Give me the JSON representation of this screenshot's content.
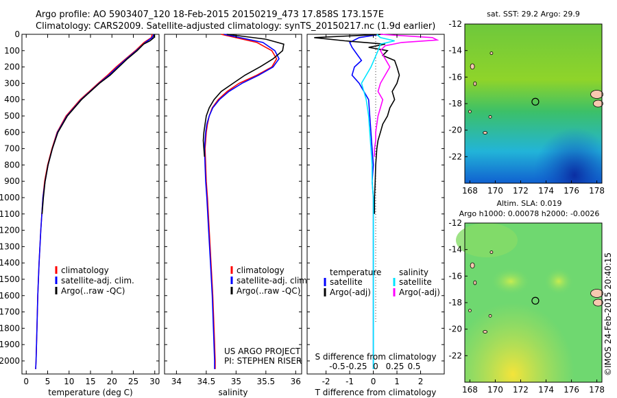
{
  "title": {
    "line1": "Argo profile: AO 5903407_120 18-Feb-2015 20150219_473 17.858S 173.157E",
    "line2": "Climatology: CARS2009. Satellite-adjusted climatology: synTS_20150217.nc (1.9d earlier)"
  },
  "colors": {
    "clim": "#ff0000",
    "sat": "#0000ff",
    "argo": "#000000",
    "sal_sat": "#00e5ff",
    "sal_argo": "#ff00ff"
  },
  "chart_data": [
    {
      "type": "line",
      "name": "temperature-panel",
      "xlabel": "temperature (deg C)",
      "xlim": [
        -1,
        31
      ],
      "ylim": [
        2080,
        0
      ],
      "xticks": [
        "0",
        "5",
        "10",
        "15",
        "20",
        "25",
        "30"
      ],
      "xtick_values": [
        0,
        5,
        10,
        15,
        20,
        25,
        30
      ],
      "yticks": [
        "0",
        "100",
        "200",
        "300",
        "400",
        "500",
        "600",
        "700",
        "800",
        "900",
        "1000",
        "1100",
        "1200",
        "1300",
        "1400",
        "1500",
        "1600",
        "1700",
        "1800",
        "1900",
        "2000"
      ],
      "ytick_values": [
        0,
        100,
        200,
        300,
        400,
        500,
        600,
        700,
        800,
        900,
        1000,
        1100,
        1200,
        1300,
        1400,
        1500,
        1600,
        1700,
        1800,
        1900,
        2000
      ],
      "legend": [
        "climatology",
        "satellite-adj. clim.",
        "Argo(..raw -QC)"
      ],
      "series": [
        {
          "name": "climatology",
          "color": "#ff0000",
          "depth": [
            0,
            20,
            50,
            100,
            150,
            200,
            250,
            300,
            400,
            500,
            600,
            700,
            800,
            900,
            1000,
            1200,
            1400,
            1600,
            1800,
            2000,
            2050
          ],
          "values": [
            29.4,
            29.2,
            27.5,
            25.5,
            23.2,
            21.0,
            19.0,
            16.8,
            12.6,
            9.3,
            7.2,
            6.0,
            5.0,
            4.3,
            3.9,
            3.4,
            3.0,
            2.7,
            2.5,
            2.3,
            2.2
          ]
        },
        {
          "name": "satellite-adj. clim.",
          "color": "#0000ff",
          "depth": [
            0,
            20,
            50,
            100,
            150,
            200,
            250,
            300,
            400,
            500,
            600,
            700,
            800,
            900,
            1000,
            1200,
            1400,
            1600,
            1800,
            2000,
            2050
          ],
          "values": [
            29.8,
            29.4,
            27.8,
            25.7,
            23.4,
            21.3,
            19.3,
            17.0,
            12.8,
            9.5,
            7.3,
            6.1,
            5.1,
            4.4,
            3.9,
            3.4,
            3.0,
            2.7,
            2.5,
            2.3,
            2.2
          ]
        },
        {
          "name": "Argo(..raw -QC)",
          "color": "#000000",
          "depth": [
            0,
            20,
            40,
            60,
            100,
            150,
            200,
            250,
            300,
            400,
            500,
            600,
            700,
            800,
            900,
            1000,
            1100
          ],
          "values": [
            29.9,
            29.8,
            28.9,
            27.4,
            25.9,
            23.6,
            21.6,
            19.6,
            17.1,
            12.9,
            9.6,
            7.4,
            6.1,
            5.1,
            4.4,
            4.0,
            3.7
          ]
        }
      ]
    },
    {
      "type": "line",
      "name": "salinity-panel",
      "xlabel": "salinity",
      "xlim": [
        33.8,
        36.1
      ],
      "ylim": [
        2080,
        0
      ],
      "xticks": [
        "34",
        "34.5",
        "35",
        "35.5",
        "36"
      ],
      "xtick_values": [
        34,
        34.5,
        35,
        35.5,
        36
      ],
      "legend": [
        "climatology",
        "satellite-adj. clim.",
        "Argo(..raw -QC)"
      ],
      "series": [
        {
          "name": "climatology",
          "color": "#ff0000",
          "depth": [
            0,
            50,
            100,
            150,
            200,
            250,
            300,
            350,
            400,
            450,
            500,
            550,
            600,
            650,
            700,
            800,
            900,
            1000,
            1200,
            1400,
            1600,
            1800,
            2000,
            2050
          ],
          "values": [
            34.75,
            35.35,
            35.6,
            35.68,
            35.6,
            35.35,
            35.05,
            34.85,
            34.7,
            34.6,
            34.55,
            34.52,
            34.5,
            34.49,
            34.48,
            34.49,
            34.5,
            34.52,
            34.55,
            34.58,
            34.61,
            34.63,
            34.65,
            34.65
          ]
        },
        {
          "name": "satellite-adj. clim.",
          "color": "#0000ff",
          "depth": [
            0,
            50,
            100,
            150,
            200,
            250,
            300,
            350,
            400,
            450,
            500,
            550,
            600,
            650,
            700,
            800,
            900,
            1000,
            1200,
            1400,
            1600,
            1800,
            2000,
            2050
          ],
          "values": [
            34.8,
            35.45,
            35.65,
            35.72,
            35.62,
            35.38,
            35.1,
            34.88,
            34.72,
            34.61,
            34.55,
            34.51,
            34.49,
            34.48,
            34.47,
            34.48,
            34.49,
            34.51,
            34.54,
            34.57,
            34.6,
            34.62,
            34.64,
            34.64
          ]
        },
        {
          "name": "Argo(..raw -QC)",
          "color": "#000000",
          "depth": [
            0,
            30,
            60,
            100,
            150,
            200,
            250,
            300,
            350,
            400,
            450,
            500,
            550,
            600,
            650,
            700,
            750
          ],
          "values": [
            34.85,
            35.5,
            35.8,
            35.78,
            35.62,
            35.4,
            35.15,
            34.95,
            34.75,
            34.63,
            34.55,
            34.5,
            34.48,
            34.46,
            34.45,
            34.46,
            34.47
          ]
        }
      ]
    },
    {
      "type": "line",
      "name": "difference-panel",
      "xlabel": "T difference from climatology",
      "xlabel_top": "S difference from climatology",
      "xlim": [
        -2.8,
        3.0
      ],
      "ylim": [
        2080,
        0
      ],
      "xticks": [
        "-2",
        "-1",
        "0",
        "1",
        "2"
      ],
      "xtick_values": [
        -2,
        -1,
        0,
        1,
        2
      ],
      "xticks_top": [
        "-0.5",
        "-0.25",
        "0",
        "0.25",
        "0.5"
      ],
      "xtick_top_values": [
        -0.5,
        -0.25,
        0,
        0.25,
        0.5
      ],
      "legend_headers": [
        "temperature",
        "salinity"
      ],
      "legend": [
        "satellite",
        "Argo(-adj)",
        "satellite",
        "Argo(-adj)"
      ],
      "series": [
        {
          "name": "satellite",
          "group": "temperature",
          "color": "#0000ff",
          "depth": [
            0,
            20,
            50,
            80,
            120,
            160,
            200,
            250,
            300,
            350,
            400,
            500,
            600,
            700,
            800,
            900,
            1000,
            1200,
            1400,
            1600,
            1800,
            2000,
            2050
          ],
          "values": [
            0.3,
            -0.6,
            -1.0,
            -0.9,
            -0.7,
            -0.5,
            -0.8,
            -0.9,
            -0.6,
            -0.4,
            -0.2,
            -0.15,
            -0.1,
            -0.05,
            0.0,
            -0.05,
            0.0,
            0.0,
            0.0,
            0.0,
            0.0,
            0.0,
            0.0
          ]
        },
        {
          "name": "Argo(-adj)",
          "group": "temperature",
          "color": "#000000",
          "depth": [
            0,
            20,
            40,
            60,
            80,
            100,
            130,
            160,
            200,
            250,
            300,
            350,
            400,
            450,
            500,
            550,
            600,
            650,
            700,
            800,
            900,
            1000,
            1100
          ],
          "values": [
            0.4,
            -2.5,
            -1.2,
            0.5,
            -0.2,
            0.6,
            0.4,
            0.9,
            1.0,
            1.1,
            1.0,
            0.8,
            0.9,
            0.7,
            0.6,
            0.4,
            0.3,
            0.2,
            0.15,
            0.1,
            0.08,
            0.05,
            0.05
          ]
        },
        {
          "name": "satellite",
          "group": "salinity",
          "color": "#00e5ff",
          "depth": [
            0,
            20,
            40,
            60,
            100,
            150,
            200,
            250,
            300,
            350,
            400,
            500,
            600,
            700,
            800,
            900,
            1000,
            1200,
            1400,
            1600,
            1800,
            2000,
            2050
          ],
          "values": [
            0.15,
            0.3,
            0.9,
            0.3,
            0.2,
            0.05,
            -0.1,
            -0.3,
            -0.5,
            -0.4,
            -0.3,
            -0.2,
            -0.15,
            -0.1,
            -0.05,
            -0.05,
            0.0,
            0.0,
            0.0,
            0.0,
            0.0,
            0.0,
            0.0
          ]
        },
        {
          "name": "Argo(-adj)",
          "group": "salinity",
          "color": "#ff00ff",
          "depth": [
            0,
            20,
            35,
            50,
            70,
            100,
            150,
            200,
            250,
            300,
            350,
            400,
            450,
            500,
            550,
            600,
            650,
            700,
            750
          ],
          "values": [
            0.3,
            2.5,
            2.7,
            1.2,
            0.5,
            0.3,
            0.5,
            0.7,
            0.5,
            0.3,
            0.2,
            0.4,
            0.3,
            0.2,
            0.15,
            0.1,
            0.1,
            0.05,
            0.05
          ]
        }
      ]
    },
    {
      "type": "heatmap",
      "name": "sst-map",
      "title": "sat. SST: 29.2  Argo: 29.9",
      "xlim": [
        167.6,
        178.4
      ],
      "ylim": [
        -24,
        -12
      ],
      "xticks": [
        "168",
        "170",
        "172",
        "174",
        "176",
        "178"
      ],
      "xtick_values": [
        168,
        170,
        172,
        174,
        176,
        178
      ],
      "yticks": [
        "-12",
        "-14",
        "-16",
        "-18",
        "-20",
        "-22"
      ],
      "ytick_values": [
        -12,
        -14,
        -16,
        -18,
        -20,
        -22
      ],
      "argo_position": [
        173.157,
        -17.858
      ]
    },
    {
      "type": "heatmap",
      "name": "sla-map",
      "title": "Altim. SLA: 0.019",
      "subtitle": "Argo h1000: 0.00078  h2000: -0.0026",
      "xlim": [
        167.6,
        178.4
      ],
      "ylim": [
        -24,
        -12
      ],
      "xticks": [
        "168",
        "170",
        "172",
        "174",
        "176",
        "178"
      ],
      "xtick_values": [
        168,
        170,
        172,
        174,
        176,
        178
      ],
      "yticks": [
        "-12",
        "-14",
        "-16",
        "-18",
        "-20",
        "-22"
      ],
      "ytick_values": [
        -12,
        -14,
        -16,
        -18,
        -20,
        -22
      ],
      "argo_position": [
        173.157,
        -17.858
      ]
    }
  ],
  "annotations": {
    "project": "US ARGO PROJECT",
    "pi": "PI: STEPHEN RISER",
    "credit": "©IMOS 24-Feb-2015 20:40:15"
  }
}
